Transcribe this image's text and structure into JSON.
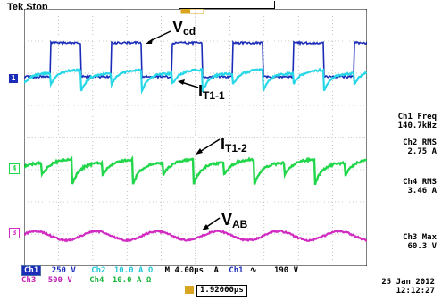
{
  "header": {
    "title": "Tek Stop"
  },
  "channels": {
    "ch1": {
      "marker": "1",
      "color": "#1b2db8"
    },
    "ch2": {
      "color": "#27d7e8"
    },
    "ch4": {
      "marker": "4",
      "color": "#21d64a"
    },
    "ch3": {
      "marker": "3",
      "color": "#d12bc2"
    }
  },
  "annotations": {
    "vcd": {
      "main": "V",
      "sub": "cd"
    },
    "it11": {
      "main": "I",
      "sub": "T1-1"
    },
    "it12": {
      "main": "I",
      "sub": "T1-2"
    },
    "vab": {
      "main": "V",
      "sub": "AB"
    }
  },
  "measurements": [
    {
      "label": "Ch1 Freq",
      "value": "140.7kHz",
      "color": "#1b2db8"
    },
    {
      "label": "Ch2 RMS",
      "value": "2.75 A",
      "color": "#21c7d6"
    },
    {
      "label": "Ch4 RMS",
      "value": "3.46 A",
      "color": "#19b63c"
    },
    {
      "label": "Ch3 Max",
      "value": "60.3 V",
      "color": "#c21fb3"
    }
  ],
  "status_bar": {
    "row1": {
      "ch1_label": "Ch1",
      "ch1_scale": "250 V",
      "ch2_label": "Ch2",
      "ch2_scale": "10.0 A Ω",
      "timebase": "M 4.00μs",
      "trig_mode": "A",
      "trig_src": "Ch1",
      "trig_slope": "∿",
      "trig_level": "190 V"
    },
    "row2": {
      "ch3_label": "Ch3",
      "ch3_scale": "500 V",
      "ch4_label": "Ch4",
      "ch4_scale": "10.0 A Ω"
    },
    "trigger_pos": "1.92000μs",
    "date": "25 Jan  2012",
    "time": "12:12:27"
  }
}
